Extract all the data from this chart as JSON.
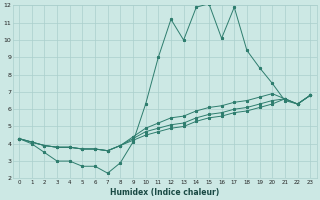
{
  "xlabel": "Humidex (Indice chaleur)",
  "x_values": [
    0,
    1,
    2,
    3,
    4,
    5,
    6,
    7,
    8,
    9,
    10,
    11,
    12,
    13,
    14,
    15,
    16,
    17,
    18,
    19,
    20,
    21,
    22,
    23
  ],
  "line1": [
    4.3,
    4.0,
    3.5,
    3.0,
    3.0,
    2.7,
    2.7,
    2.3,
    2.9,
    4.1,
    6.3,
    9.0,
    11.2,
    10.0,
    11.9,
    12.1,
    10.1,
    11.9,
    9.4,
    8.4,
    7.5,
    6.5,
    6.3,
    6.8
  ],
  "line2": [
    4.3,
    4.1,
    3.9,
    3.8,
    3.8,
    3.7,
    3.7,
    3.6,
    3.9,
    4.4,
    4.9,
    5.2,
    5.5,
    5.6,
    5.9,
    6.1,
    6.2,
    6.4,
    6.5,
    6.7,
    6.9,
    6.6,
    6.3,
    6.8
  ],
  "line3": [
    4.3,
    4.1,
    3.9,
    3.8,
    3.8,
    3.7,
    3.7,
    3.6,
    3.9,
    4.3,
    4.7,
    4.9,
    5.1,
    5.2,
    5.5,
    5.7,
    5.8,
    6.0,
    6.1,
    6.3,
    6.5,
    6.6,
    6.3,
    6.8
  ],
  "line4": [
    4.3,
    4.1,
    3.9,
    3.8,
    3.8,
    3.7,
    3.7,
    3.6,
    3.9,
    4.2,
    4.5,
    4.7,
    4.9,
    5.0,
    5.3,
    5.5,
    5.6,
    5.8,
    5.9,
    6.1,
    6.3,
    6.6,
    6.3,
    6.8
  ],
  "line_color": "#2e7d6e",
  "bg_color": "#cce8e4",
  "grid_color": "#aacfcc",
  "ylim": [
    2,
    12
  ],
  "yticks": [
    2,
    3,
    4,
    5,
    6,
    7,
    8,
    9,
    10,
    11,
    12
  ],
  "xlim": [
    -0.5,
    23.5
  ],
  "xticks": [
    0,
    1,
    2,
    3,
    4,
    5,
    6,
    7,
    8,
    9,
    10,
    11,
    12,
    13,
    14,
    15,
    16,
    17,
    18,
    19,
    20,
    21,
    22,
    23
  ]
}
